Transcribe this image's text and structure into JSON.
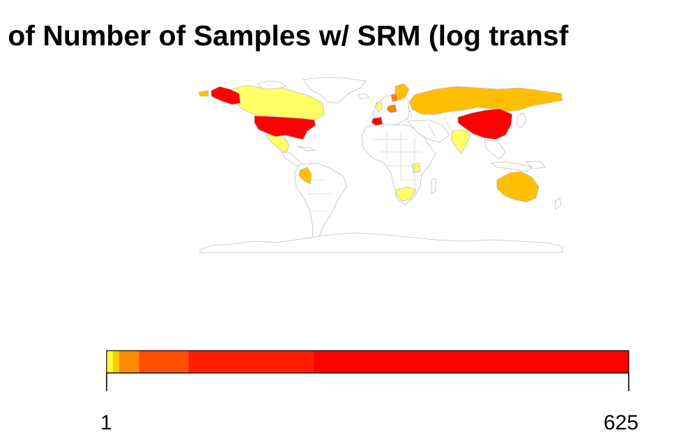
{
  "title": "ap of Number of Samples w/ SRM (log transf",
  "colors": {
    "none": "#ffffff",
    "border": "#bdbdbd",
    "level1": "#ffff66",
    "level2": "#ffbf00",
    "level3": "#ff8000",
    "level4": "#ff0000"
  },
  "map": {
    "regions": [
      {
        "name": "Alaska",
        "level": "level4"
      },
      {
        "name": "Canada",
        "level": "level1"
      },
      {
        "name": "United States",
        "level": "level4"
      },
      {
        "name": "Mexico",
        "level": "level1"
      },
      {
        "name": "Peru",
        "level": "level2"
      },
      {
        "name": "Russia",
        "level": "level2"
      },
      {
        "name": "China",
        "level": "level4"
      },
      {
        "name": "India",
        "level": "level1"
      },
      {
        "name": "Australia",
        "level": "level2"
      },
      {
        "name": "South Africa",
        "level": "level1"
      },
      {
        "name": "Tanzania",
        "level": "level1"
      },
      {
        "name": "Spain",
        "level": "level4"
      },
      {
        "name": "Germany",
        "level": "level3"
      },
      {
        "name": "Scandinavia",
        "level": "level2"
      },
      {
        "name": "United Kingdom",
        "level": "level1"
      }
    ]
  },
  "legend": {
    "min_label": "1",
    "max_label": "625",
    "segments": [
      {
        "fraction": 0.012,
        "color": "#ffff33"
      },
      {
        "fraction": 0.012,
        "color": "#ffcc00"
      },
      {
        "fraction": 0.038,
        "color": "#ff8c00"
      },
      {
        "fraction": 0.095,
        "color": "#ff4f00"
      },
      {
        "fraction": 0.24,
        "color": "#ff1e00"
      },
      {
        "fraction": 0.603,
        "color": "#ff0000"
      }
    ]
  }
}
